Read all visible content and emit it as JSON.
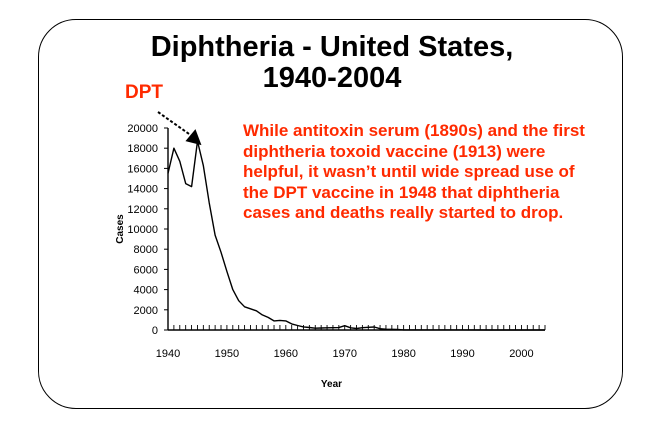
{
  "slide": {
    "title_line_1": "Diphtheria - United States,",
    "title_line_2": "1940-2004",
    "dpt_label": "DPT",
    "annotation": "While antitoxin serum (1890s) and the first diphtheria toxoid vaccine (1913) were helpful, it wasn’t until wide spread use of the DPT vaccine in 1948 that diphtheria cases and deaths really started to drop."
  },
  "colors": {
    "annotation": "#ff2a00",
    "line": "#000000",
    "frame": "#000000"
  },
  "chart_data": {
    "type": "line",
    "title": "Diphtheria - United States, 1940-2004",
    "xlabel": "Year",
    "ylabel": "Cases",
    "xlim": [
      1940,
      2004
    ],
    "ylim": [
      0,
      20000
    ],
    "x_ticks": [
      1940,
      1950,
      1960,
      1970,
      1980,
      1990,
      2000
    ],
    "y_ticks": [
      0,
      2000,
      4000,
      6000,
      8000,
      10000,
      12000,
      14000,
      16000,
      18000,
      20000
    ],
    "series": [
      {
        "x": [
          1940,
          1941,
          1942,
          1943,
          1944,
          1945,
          1946,
          1947,
          1948,
          1949,
          1950,
          1951,
          1952,
          1953,
          1954,
          1955,
          1956,
          1957,
          1958,
          1959,
          1960,
          1961,
          1962,
          1963,
          1964,
          1965,
          1966,
          1967,
          1968,
          1969,
          1970,
          1971,
          1972,
          1973,
          1974,
          1975,
          1976,
          1977,
          1978,
          1979,
          1980,
          1985,
          1990,
          1995,
          2000,
          2004
        ],
        "y": [
          15500,
          18000,
          16700,
          14500,
          14200,
          18700,
          16300,
          12600,
          9400,
          7700,
          5800,
          4000,
          2900,
          2300,
          2100,
          1900,
          1500,
          1250,
          900,
          950,
          900,
          600,
          450,
          310,
          250,
          180,
          200,
          220,
          230,
          240,
          430,
          220,
          150,
          230,
          270,
          300,
          130,
          80,
          70,
          60,
          10,
          5,
          5,
          3,
          2,
          1
        ]
      }
    ],
    "annotations": [
      {
        "text": "DPT",
        "points_to_x": 1945
      }
    ],
    "grid": false
  }
}
